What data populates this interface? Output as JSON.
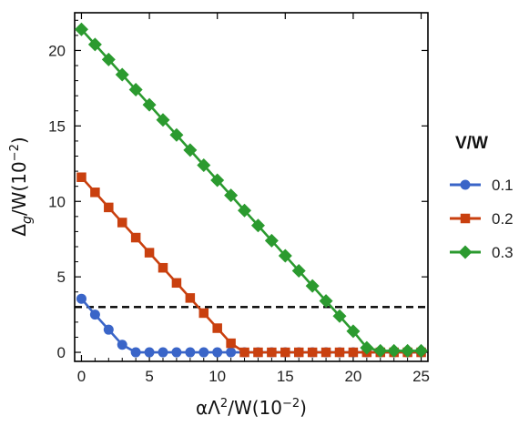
{
  "chart_data": {
    "type": "line",
    "xlabel_parts": {
      "alpha": "α",
      "Lambda": "Λ",
      "sq": "2",
      "rest": "/W(10",
      "exp": "−2",
      "close": ")"
    },
    "ylabel_parts": {
      "Delta": "Δ",
      "sub": "g",
      "rest": "/W(10",
      "exp": "−2",
      "close": ")"
    },
    "xlim": [
      -0.5,
      25.5
    ],
    "ylim": [
      -0.6,
      22.5
    ],
    "x_ticks": [
      0,
      5,
      10,
      15,
      20,
      25
    ],
    "y_ticks": [
      0,
      5,
      10,
      15,
      20
    ],
    "legend_title": "V/W",
    "legend_position": "right",
    "grid": false,
    "reference_line": {
      "y": 3.0,
      "style": "dashed",
      "color": "#000000"
    },
    "series": [
      {
        "name": "0.1",
        "color": "#3a65c8",
        "marker": "circle",
        "x": [
          0,
          1,
          2,
          3,
          4,
          5,
          6,
          7,
          8,
          9,
          10,
          11,
          12,
          13,
          14,
          15,
          16,
          17,
          18,
          19,
          20,
          21,
          22,
          23,
          24,
          25
        ],
        "y": [
          3.55,
          2.5,
          1.5,
          0.5,
          0,
          0,
          0,
          0,
          0,
          0,
          0,
          0,
          0,
          0,
          0,
          0,
          0,
          0,
          0,
          0,
          0,
          0,
          0,
          0,
          0,
          0
        ]
      },
      {
        "name": "0.2",
        "color": "#c9400f",
        "marker": "square",
        "x": [
          0,
          1,
          2,
          3,
          4,
          5,
          6,
          7,
          8,
          9,
          10,
          11,
          12,
          13,
          14,
          15,
          16,
          17,
          18,
          19,
          20,
          21,
          22,
          23,
          24,
          25
        ],
        "y": [
          11.6,
          10.6,
          9.6,
          8.6,
          7.6,
          6.6,
          5.6,
          4.6,
          3.6,
          2.6,
          1.6,
          0.6,
          0,
          0,
          0,
          0,
          0,
          0,
          0,
          0,
          0,
          0,
          0,
          0,
          0,
          0
        ]
      },
      {
        "name": "0.3",
        "color": "#2b9a2f",
        "marker": "diamond",
        "x": [
          0,
          1,
          2,
          3,
          4,
          5,
          6,
          7,
          8,
          9,
          10,
          11,
          12,
          13,
          14,
          15,
          16,
          17,
          18,
          19,
          20,
          21,
          22,
          23,
          24,
          25
        ],
        "y": [
          21.4,
          20.4,
          19.4,
          18.4,
          17.4,
          16.4,
          15.4,
          14.4,
          13.4,
          12.4,
          11.4,
          10.4,
          9.4,
          8.4,
          7.4,
          6.4,
          5.4,
          4.4,
          3.4,
          2.4,
          1.4,
          0.3,
          0.1,
          0.1,
          0.1,
          0.1
        ]
      }
    ]
  }
}
